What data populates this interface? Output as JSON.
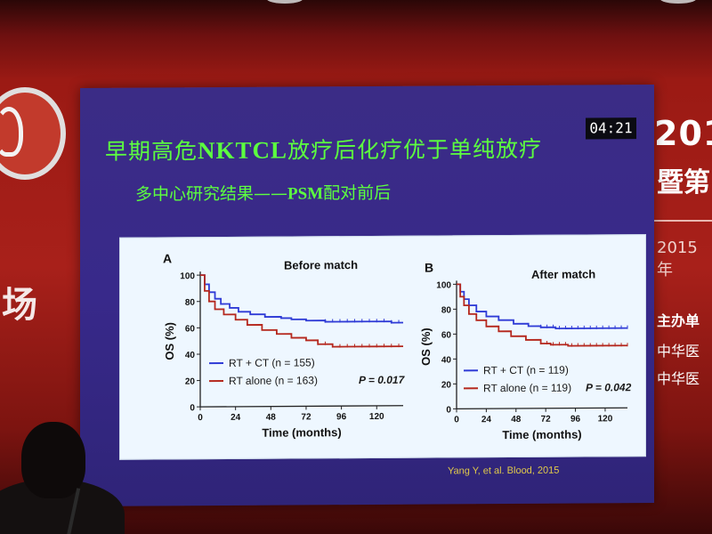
{
  "slide": {
    "timer": "04:21",
    "title_pre": "早期高危",
    "title_bold": "NKTCL",
    "title_post": "放疗后化疗优于单纯放疗",
    "subtitle_pre": "多中心研究结果——",
    "subtitle_bold": "PSM",
    "subtitle_post": "配对前后",
    "citation": "Yang Y, et al. Blood, 2015"
  },
  "backdrop": {
    "year": "201",
    "line2": "暨第",
    "date": "2015年",
    "organizer": "主办单",
    "org_line2": "中华医",
    "org_line3": "中华医",
    "left_char": "场"
  },
  "colors": {
    "slide_bg": "#38298a",
    "title_green": "#5cff3f",
    "rt_ct_blue": "#2f3bd6",
    "rt_alone_red": "#b5281e",
    "banner_red": "#a8201a"
  },
  "chart_data": [
    {
      "type": "line",
      "panel_label": "A",
      "title": "Before match",
      "xlabel": "Time (months)",
      "ylabel": "OS (%)",
      "xlim": [
        0,
        138
      ],
      "ylim": [
        0,
        100
      ],
      "x_ticks": [
        0,
        24,
        48,
        72,
        96,
        120
      ],
      "y_ticks": [
        0,
        20,
        40,
        60,
        80,
        100
      ],
      "p_value": "P = 0.017",
      "series": [
        {
          "name": "RT + CT (n = 155)",
          "color": "#2f3bd6",
          "points": [
            [
              0,
              100
            ],
            [
              3,
              93
            ],
            [
              6,
              87
            ],
            [
              10,
              82
            ],
            [
              14,
              78
            ],
            [
              20,
              75
            ],
            [
              26,
              72
            ],
            [
              34,
              70
            ],
            [
              44,
              68
            ],
            [
              55,
              67
            ],
            [
              62,
              66
            ],
            [
              72,
              65
            ],
            [
              85,
              64
            ],
            [
              100,
              64
            ],
            [
              115,
              64
            ],
            [
              130,
              63
            ],
            [
              138,
              63
            ]
          ]
        },
        {
          "name": "RT alone (n = 163)",
          "color": "#b5281e",
          "points": [
            [
              0,
              100
            ],
            [
              3,
              88
            ],
            [
              6,
              80
            ],
            [
              10,
              74
            ],
            [
              16,
              70
            ],
            [
              24,
              66
            ],
            [
              32,
              62
            ],
            [
              42,
              58
            ],
            [
              52,
              55
            ],
            [
              62,
              52
            ],
            [
              72,
              50
            ],
            [
              80,
              47
            ],
            [
              90,
              45
            ],
            [
              100,
              45
            ],
            [
              120,
              45
            ],
            [
              138,
              45
            ]
          ]
        }
      ]
    },
    {
      "type": "line",
      "panel_label": "B",
      "title": "After match",
      "xlabel": "Time (months)",
      "ylabel": "OS (%)",
      "xlim": [
        0,
        138
      ],
      "ylim": [
        0,
        100
      ],
      "x_ticks": [
        0,
        24,
        48,
        72,
        96,
        120
      ],
      "y_ticks": [
        0,
        20,
        40,
        60,
        80,
        100
      ],
      "p_value": "P = 0.042",
      "series": [
        {
          "name": "RT + CT (n = 119)",
          "color": "#2f3bd6",
          "points": [
            [
              0,
              100
            ],
            [
              3,
              94
            ],
            [
              6,
              88
            ],
            [
              10,
              83
            ],
            [
              16,
              78
            ],
            [
              24,
              74
            ],
            [
              34,
              71
            ],
            [
              46,
              68
            ],
            [
              58,
              66
            ],
            [
              68,
              65
            ],
            [
              80,
              64
            ],
            [
              96,
              64
            ],
            [
              120,
              64
            ],
            [
              138,
              64
            ]
          ]
        },
        {
          "name": "RT alone (n = 119)",
          "color": "#b5281e",
          "points": [
            [
              0,
              100
            ],
            [
              3,
              90
            ],
            [
              6,
              83
            ],
            [
              10,
              76
            ],
            [
              16,
              71
            ],
            [
              24,
              66
            ],
            [
              34,
              62
            ],
            [
              44,
              58
            ],
            [
              56,
              55
            ],
            [
              68,
              52
            ],
            [
              76,
              51
            ],
            [
              90,
              50
            ],
            [
              110,
              50
            ],
            [
              138,
              50
            ]
          ]
        }
      ]
    }
  ]
}
